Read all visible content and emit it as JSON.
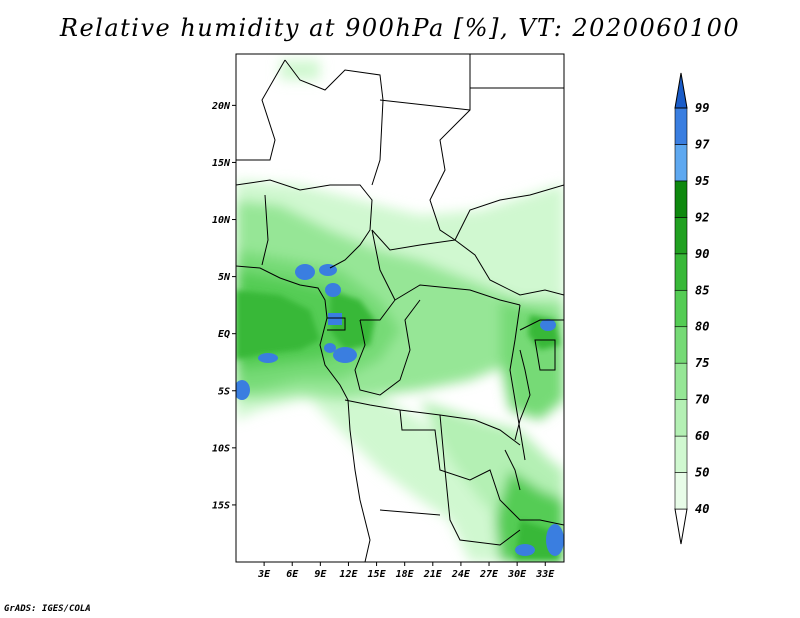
{
  "title": "Relative humidity at 900hPa [%], VT: 2020060100",
  "footer": "GrADS: IGES/COLA",
  "map": {
    "lat_ticks": [
      {
        "value": 20,
        "label": "20N"
      },
      {
        "value": 15,
        "label": "15N"
      },
      {
        "value": 10,
        "label": "10N"
      },
      {
        "value": 5,
        "label": "5N"
      },
      {
        "value": 0,
        "label": "EQ"
      },
      {
        "value": -5,
        "label": "5S"
      },
      {
        "value": -10,
        "label": "10S"
      },
      {
        "value": -15,
        "label": "15S"
      }
    ],
    "lon_ticks": [
      {
        "value": 3,
        "label": "3E"
      },
      {
        "value": 6,
        "label": "6E"
      },
      {
        "value": 9,
        "label": "9E"
      },
      {
        "value": 12,
        "label": "12E"
      },
      {
        "value": 15,
        "label": "15E"
      },
      {
        "value": 18,
        "label": "18E"
      },
      {
        "value": 21,
        "label": "21E"
      },
      {
        "value": 24,
        "label": "24E"
      },
      {
        "value": 27,
        "label": "27E"
      },
      {
        "value": 30,
        "label": "30E"
      },
      {
        "value": 33,
        "label": "33E"
      }
    ],
    "lon_range": [
      0,
      35
    ],
    "lat_range": [
      -20,
      24.5
    ]
  },
  "colorbar": {
    "labels": [
      "40",
      "50",
      "60",
      "70",
      "75",
      "80",
      "85",
      "90",
      "92",
      "95",
      "97",
      "99"
    ],
    "colors": [
      "#ffffff",
      "#e8fce8",
      "#d0f8d0",
      "#b4f0b4",
      "#96e696",
      "#76da76",
      "#54cc54",
      "#38b838",
      "#20a020",
      "#0e880e",
      "#5ea8f0",
      "#3a7ee0",
      "#1a5cc8"
    ]
  }
}
